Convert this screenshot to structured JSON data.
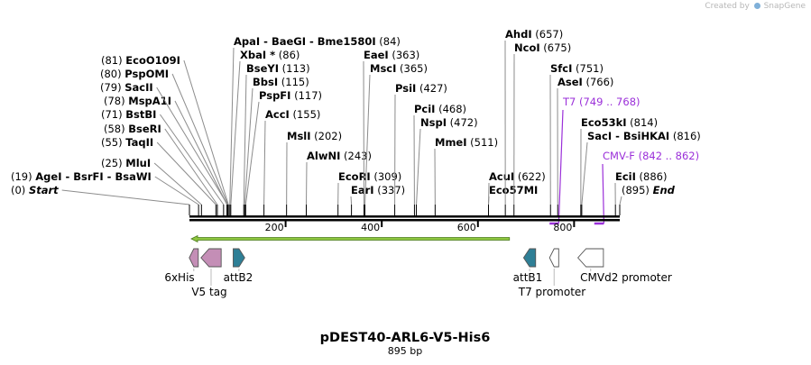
{
  "credit": {
    "prefix": "Created by",
    "brand": "SnapGene"
  },
  "plasmid": {
    "name": "pDEST40-ARL6-V5-His6",
    "length_label": "895 bp",
    "length": 895
  },
  "ruler": {
    "ticks": [
      200,
      400,
      600,
      800
    ]
  },
  "sites": [
    {
      "name": "AgeI  -  BsrFI  -  BsaWI",
      "pos": 19,
      "label": "(19)",
      "italic": false
    },
    {
      "name": "Start",
      "pos": 0,
      "label": "(0)",
      "italic": true
    },
    {
      "name": "MluI",
      "pos": 25,
      "label": "(25)",
      "italic": false
    },
    {
      "name": "TaqII",
      "pos": 55,
      "label": "(55)",
      "italic": false
    },
    {
      "name": "BseRI",
      "pos": 58,
      "label": "(58)",
      "italic": false
    },
    {
      "name": "BstBI",
      "pos": 71,
      "label": "(71)",
      "italic": false
    },
    {
      "name": "MspA1I",
      "pos": 78,
      "label": "(78)",
      "italic": false
    },
    {
      "name": "SacII",
      "pos": 79,
      "label": "(79)",
      "italic": false
    },
    {
      "name": "PspOMI",
      "pos": 80,
      "label": "(80)",
      "italic": false
    },
    {
      "name": "EcoO109I",
      "pos": 81,
      "label": "(81)",
      "italic": false
    },
    {
      "name": "ApaI  -  BaeGI  -  Bme1580I",
      "pos": 84,
      "label": "(84)",
      "italic": false
    },
    {
      "name": "XbaI *",
      "pos": 86,
      "label": "(86)",
      "italic": false
    },
    {
      "name": "BseYI",
      "pos": 113,
      "label": "(113)",
      "italic": false
    },
    {
      "name": "BbsI",
      "pos": 115,
      "label": "(115)",
      "italic": false
    },
    {
      "name": "PspFI",
      "pos": 117,
      "label": "(117)",
      "italic": false
    },
    {
      "name": "AccI",
      "pos": 155,
      "label": "(155)",
      "italic": false
    },
    {
      "name": "MslI",
      "pos": 202,
      "label": "(202)",
      "italic": false
    },
    {
      "name": "AlwNI",
      "pos": 243,
      "label": "(243)",
      "italic": false
    },
    {
      "name": "EcoRI",
      "pos": 309,
      "label": "(309)",
      "italic": false
    },
    {
      "name": "EarI",
      "pos": 337,
      "label": "(337)",
      "italic": false
    },
    {
      "name": "EaeI",
      "pos": 363,
      "label": "(363)",
      "italic": false
    },
    {
      "name": "MscI",
      "pos": 365,
      "label": "(365)",
      "italic": false
    },
    {
      "name": "PsiI",
      "pos": 427,
      "label": "(427)",
      "italic": false
    },
    {
      "name": "PciI",
      "pos": 468,
      "label": "(468)",
      "italic": false
    },
    {
      "name": "NspI",
      "pos": 472,
      "label": "(472)",
      "italic": false
    },
    {
      "name": "MmeI",
      "pos": 511,
      "label": "(511)",
      "italic": false
    },
    {
      "name": "AcuI",
      "pos": 622,
      "label": "(622)",
      "italic": false
    },
    {
      "name": "Eco57MI",
      "pos": 622,
      "label": "",
      "italic": false
    },
    {
      "name": "AhdI",
      "pos": 657,
      "label": "(657)",
      "italic": false
    },
    {
      "name": "NcoI",
      "pos": 675,
      "label": "(675)",
      "italic": false
    },
    {
      "name": "SfcI",
      "pos": 751,
      "label": "(751)",
      "italic": false
    },
    {
      "name": "AseI",
      "pos": 766,
      "label": "(766)",
      "italic": false
    },
    {
      "name": "Eco53kI",
      "pos": 814,
      "label": "(814)",
      "italic": false
    },
    {
      "name": "SacI  -  BsiHKAI",
      "pos": 816,
      "label": "(816)",
      "italic": false
    },
    {
      "name": "EciI",
      "pos": 886,
      "label": "(886)",
      "italic": false
    },
    {
      "name": "End",
      "pos": 895,
      "label": "(895)",
      "italic": true
    }
  ],
  "primers": [
    {
      "name": "T7",
      "range": "(749 .. 768)",
      "start": 749,
      "end": 768,
      "color": "#9b30d9"
    },
    {
      "name": "CMV-F",
      "range": "(842 .. 862)",
      "start": 842,
      "end": 862,
      "color": "#9b30d9"
    }
  ],
  "orf": {
    "start": 0,
    "end": 675,
    "direction": "reverse",
    "color": "#8ec63f"
  },
  "features": [
    {
      "name": "6xHis",
      "start": 0,
      "end": 18,
      "direction": "reverse",
      "color": "#c48eb6"
    },
    {
      "name": "V5 tag",
      "start": 24,
      "end": 66,
      "direction": "reverse",
      "color": "#c48eb6"
    },
    {
      "name": "attB2",
      "start": 91,
      "end": 115,
      "direction": "forward",
      "color": "#2e7f96"
    },
    {
      "name": "attB1",
      "start": 695,
      "end": 720,
      "direction": "reverse",
      "color": "#2e7f96"
    },
    {
      "name": "T7 promoter",
      "start": 749,
      "end": 768,
      "direction": "reverse",
      "color": "#ffffff"
    },
    {
      "name": "CMVd2 promoter",
      "start": 808,
      "end": 861,
      "direction": "reverse",
      "color": "#ffffff"
    }
  ]
}
